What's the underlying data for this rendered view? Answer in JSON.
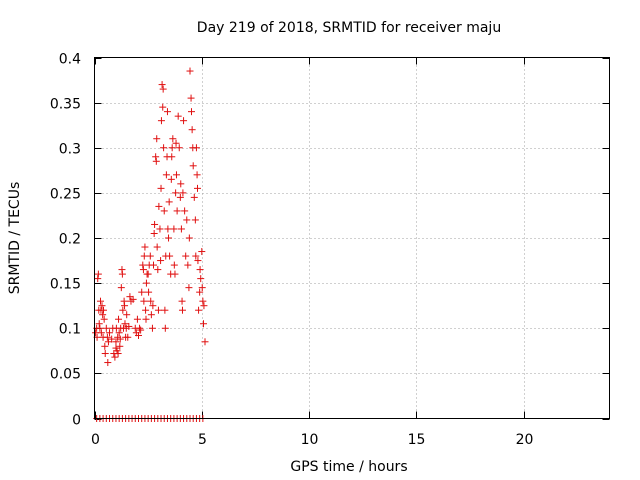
{
  "chart_data": {
    "type": "scatter",
    "title": "Day 219 of 2018, SRMTID for receiver maju",
    "xlabel": "GPS time / hours",
    "ylabel": "SRMTID / TECUs",
    "xlim": [
      0,
      24
    ],
    "ylim": [
      0,
      0.4
    ],
    "xticks": [
      0,
      5,
      10,
      15,
      20
    ],
    "xtick_labels": [
      "0",
      "5",
      "10",
      "15",
      "20"
    ],
    "yticks": [
      0,
      0.05,
      0.1,
      0.15,
      0.2,
      0.25,
      0.3,
      0.35,
      0.4
    ],
    "ytick_labels": [
      "0",
      "0.05",
      "0.1",
      "0.15",
      "0.2",
      "0.25",
      "0.3",
      "0.35",
      "0.4"
    ],
    "grid": true,
    "marker": "plus",
    "marker_color": "#e01010",
    "series": [
      {
        "name": "SRMTID",
        "points": [
          [
            0.05,
            0.095
          ],
          [
            0.1,
            0.1
          ],
          [
            0.12,
            0.09
          ],
          [
            0.15,
            0.155
          ],
          [
            0.18,
            0.16
          ],
          [
            0.2,
            0.12
          ],
          [
            0.22,
            0.105
          ],
          [
            0.25,
            0.1
          ],
          [
            0.28,
            0.13
          ],
          [
            0.3,
            0.12
          ],
          [
            0.32,
            0.095
          ],
          [
            0.35,
            0.125
          ],
          [
            0.38,
            0.115
          ],
          [
            0.4,
            0.09
          ],
          [
            0.42,
            0.12
          ],
          [
            0.45,
            0.11
          ],
          [
            0.48,
            0.08
          ],
          [
            0.5,
            0.072
          ],
          [
            0.55,
            0.1
          ],
          [
            0.6,
            0.09
          ],
          [
            0.62,
            0.062
          ],
          [
            0.65,
            0.085
          ],
          [
            0.7,
            0.095
          ],
          [
            0.8,
            0.088
          ],
          [
            0.85,
            0.1
          ],
          [
            0.9,
            0.072
          ],
          [
            0.95,
            0.068
          ],
          [
            1.0,
            0.078
          ],
          [
            1.0,
            0.085
          ],
          [
            1.02,
            0.1
          ],
          [
            1.05,
            0.075
          ],
          [
            1.08,
            0.09
          ],
          [
            1.1,
            0.072
          ],
          [
            1.12,
            0.11
          ],
          [
            1.15,
            0.095
          ],
          [
            1.18,
            0.08
          ],
          [
            1.2,
            0.088
          ],
          [
            1.22,
            0.1
          ],
          [
            1.25,
            0.145
          ],
          [
            1.28,
            0.165
          ],
          [
            1.3,
            0.16
          ],
          [
            1.32,
            0.12
          ],
          [
            1.35,
            0.1
          ],
          [
            1.38,
            0.13
          ],
          [
            1.4,
            0.125
          ],
          [
            1.42,
            0.105
          ],
          [
            1.45,
            0.09
          ],
          [
            1.48,
            0.1
          ],
          [
            1.5,
            0.115
          ],
          [
            1.55,
            0.09
          ],
          [
            1.6,
            0.102
          ],
          [
            1.65,
            0.135
          ],
          [
            1.7,
            0.13
          ],
          [
            1.8,
            0.132
          ],
          [
            1.9,
            0.1
          ],
          [
            1.95,
            0.095
          ],
          [
            2.0,
            0.11
          ],
          [
            2.05,
            0.092
          ],
          [
            2.1,
            0.1
          ],
          [
            2.15,
            0.098
          ],
          [
            2.2,
            0.14
          ],
          [
            2.25,
            0.17
          ],
          [
            2.28,
            0.165
          ],
          [
            2.3,
            0.13
          ],
          [
            2.32,
            0.18
          ],
          [
            2.35,
            0.19
          ],
          [
            2.38,
            0.12
          ],
          [
            2.4,
            0.11
          ],
          [
            2.42,
            0.15
          ],
          [
            2.45,
            0.16
          ],
          [
            2.5,
            0.16
          ],
          [
            2.52,
            0.14
          ],
          [
            2.55,
            0.17
          ],
          [
            2.6,
            0.18
          ],
          [
            2.62,
            0.13
          ],
          [
            2.65,
            0.115
          ],
          [
            2.7,
            0.1
          ],
          [
            2.72,
            0.125
          ],
          [
            2.75,
            0.17
          ],
          [
            2.78,
            0.205
          ],
          [
            2.8,
            0.215
          ],
          [
            2.85,
            0.29
          ],
          [
            2.88,
            0.285
          ],
          [
            2.9,
            0.31
          ],
          [
            2.92,
            0.19
          ],
          [
            2.95,
            0.165
          ],
          [
            2.98,
            0.12
          ],
          [
            3.0,
            0.235
          ],
          [
            3.05,
            0.21
          ],
          [
            3.08,
            0.175
          ],
          [
            3.1,
            0.255
          ],
          [
            3.12,
            0.33
          ],
          [
            3.15,
            0.37
          ],
          [
            3.18,
            0.345
          ],
          [
            3.2,
            0.365
          ],
          [
            3.22,
            0.3
          ],
          [
            3.25,
            0.23
          ],
          [
            3.28,
            0.12
          ],
          [
            3.3,
            0.1
          ],
          [
            3.32,
            0.18
          ],
          [
            3.35,
            0.27
          ],
          [
            3.38,
            0.29
          ],
          [
            3.4,
            0.34
          ],
          [
            3.42,
            0.21
          ],
          [
            3.45,
            0.2
          ],
          [
            3.48,
            0.24
          ],
          [
            3.5,
            0.18
          ],
          [
            3.55,
            0.16
          ],
          [
            3.58,
            0.265
          ],
          [
            3.6,
            0.29
          ],
          [
            3.62,
            0.3
          ],
          [
            3.65,
            0.31
          ],
          [
            3.7,
            0.21
          ],
          [
            3.72,
            0.17
          ],
          [
            3.75,
            0.16
          ],
          [
            3.78,
            0.25
          ],
          [
            3.8,
            0.305
          ],
          [
            3.82,
            0.27
          ],
          [
            3.85,
            0.23
          ],
          [
            3.9,
            0.335
          ],
          [
            3.95,
            0.3
          ],
          [
            4.0,
            0.245
          ],
          [
            4.02,
            0.26
          ],
          [
            4.05,
            0.21
          ],
          [
            4.08,
            0.13
          ],
          [
            4.1,
            0.12
          ],
          [
            4.12,
            0.25
          ],
          [
            4.15,
            0.33
          ],
          [
            4.2,
            0.23
          ],
          [
            4.25,
            0.18
          ],
          [
            4.3,
            0.22
          ],
          [
            4.35,
            0.17
          ],
          [
            4.4,
            0.145
          ],
          [
            4.42,
            0.2
          ],
          [
            4.45,
            0.385
          ],
          [
            4.5,
            0.355
          ],
          [
            4.52,
            0.34
          ],
          [
            4.55,
            0.32
          ],
          [
            4.58,
            0.3
          ],
          [
            4.6,
            0.28
          ],
          [
            4.65,
            0.245
          ],
          [
            4.7,
            0.22
          ],
          [
            4.72,
            0.18
          ],
          [
            4.75,
            0.3
          ],
          [
            4.78,
            0.27
          ],
          [
            4.8,
            0.255
          ],
          [
            4.82,
            0.175
          ],
          [
            4.85,
            0.12
          ],
          [
            4.9,
            0.14
          ],
          [
            4.92,
            0.165
          ],
          [
            4.95,
            0.155
          ],
          [
            5.0,
            0.185
          ],
          [
            5.02,
            0.145
          ],
          [
            5.05,
            0.13
          ],
          [
            5.08,
            0.105
          ],
          [
            5.1,
            0.125
          ],
          [
            5.15,
            0.085
          ],
          [
            0.1,
            0
          ],
          [
            0.25,
            0
          ],
          [
            0.4,
            0
          ],
          [
            0.55,
            0
          ],
          [
            0.7,
            0
          ],
          [
            0.85,
            0
          ],
          [
            1.0,
            0
          ],
          [
            1.15,
            0
          ],
          [
            1.3,
            0
          ],
          [
            1.45,
            0
          ],
          [
            1.6,
            0
          ],
          [
            1.75,
            0
          ],
          [
            1.9,
            0
          ],
          [
            2.05,
            0
          ],
          [
            2.2,
            0
          ],
          [
            2.35,
            0
          ],
          [
            2.5,
            0
          ],
          [
            2.65,
            0
          ],
          [
            2.8,
            0
          ],
          [
            2.95,
            0
          ],
          [
            3.1,
            0
          ],
          [
            3.25,
            0
          ],
          [
            3.4,
            0
          ],
          [
            3.55,
            0
          ],
          [
            3.7,
            0
          ],
          [
            3.85,
            0
          ],
          [
            4.0,
            0
          ],
          [
            4.15,
            0
          ],
          [
            4.3,
            0
          ],
          [
            4.45,
            0
          ],
          [
            4.6,
            0
          ],
          [
            4.75,
            0
          ],
          [
            4.9,
            0
          ],
          [
            5.05,
            0
          ]
        ]
      }
    ]
  }
}
